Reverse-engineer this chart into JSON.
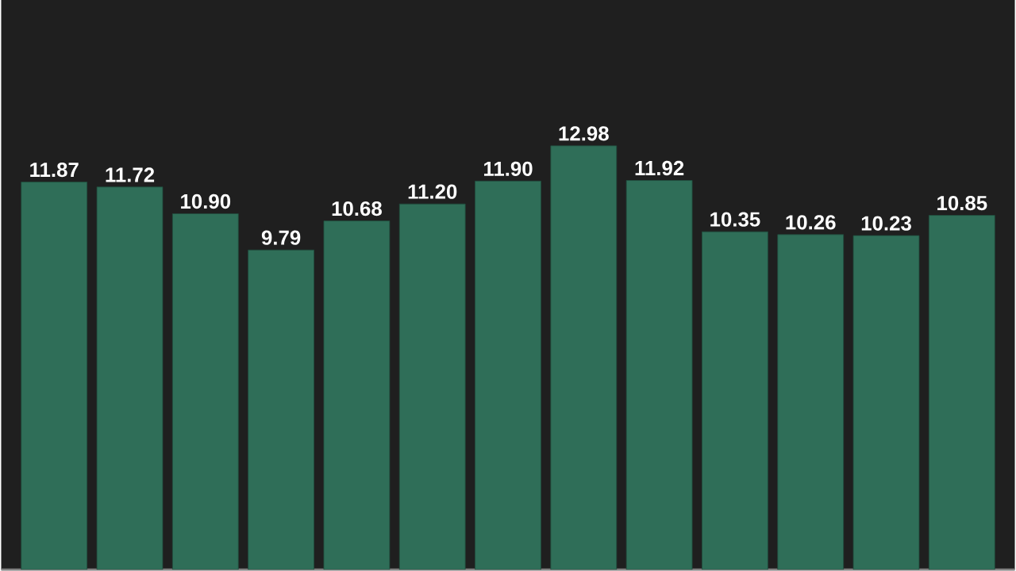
{
  "chart_data": {
    "type": "bar",
    "categories": [
      null,
      null,
      null,
      null,
      null,
      null,
      null,
      null,
      null,
      null,
      null,
      null,
      null
    ],
    "values": [
      11.87,
      11.72,
      10.9,
      9.79,
      10.68,
      11.2,
      11.9,
      12.98,
      11.92,
      10.35,
      10.26,
      10.23,
      10.85
    ],
    "value_labels": [
      "11.87",
      "11.72",
      "10.90",
      "9.79",
      "10.68",
      "11.20",
      "11.90",
      "12.98",
      "11.92",
      "10.35",
      "10.26",
      "10.23",
      "10.85"
    ],
    "color": "#2f6e58"
  }
}
